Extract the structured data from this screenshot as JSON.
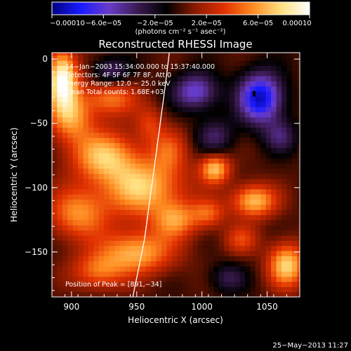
{
  "chart_data": {
    "type": "heatmap",
    "title": "Reconstructed RHESSI Image",
    "xlabel": "Heliocentric X (arcsec)",
    "ylabel": "Heliocentric Y (arcsec)",
    "xlim": [
      885,
      1075
    ],
    "ylim": [
      -185,
      5
    ],
    "x_ticks": [
      900,
      950,
      1000,
      1050
    ],
    "y_ticks": [
      0,
      -50,
      -100,
      -150
    ],
    "colorbar": {
      "range": [
        -0.0001,
        0.0001
      ],
      "ticks": [
        -0.0001,
        -6e-05,
        -2e-05,
        2e-05,
        6e-05,
        0.0001
      ],
      "tick_labels": [
        "−0.00010",
        "−6.0e−05",
        "−2.0e−05",
        "2.0e−05",
        "6.0e−05",
        "0.00010"
      ],
      "unit_label": "(photons cm⁻² s⁻¹ asec⁻²)",
      "colormap": [
        "#000080",
        "#1a1aff",
        "#6a3cc8",
        "#3a1a50",
        "#000000",
        "#8a1a00",
        "#e03000",
        "#ff8a20",
        "#ffe080",
        "#ffffff"
      ]
    },
    "annotations": [
      "14−Jan−2003 15:34:00.000 to 15:37:40.000",
      "Detectors: 4F 5F 6F 7F 8F, Att 0",
      "Energy Range: 12.0 − 25.0 keV",
      "Clean    Total counts: 1.68E+03"
    ],
    "peak_label": "Position of Peak = [891,−34]",
    "peak_position": [
      891,
      -34
    ],
    "limb_curve": [
      [
        975,
        5
      ],
      [
        972,
        -20
      ],
      [
        968,
        -50
      ],
      [
        964,
        -80
      ],
      [
        960,
        -110
      ],
      [
        956,
        -140
      ],
      [
        951,
        -165
      ],
      [
        947,
        -185
      ]
    ],
    "blobs": [
      {
        "x": 893,
        "y": -15,
        "sx": 8,
        "sy": 16,
        "a": 1.0
      },
      {
        "x": 900,
        "y": -45,
        "sx": 12,
        "sy": 14,
        "a": 0.55
      },
      {
        "x": 930,
        "y": -30,
        "sx": 14,
        "sy": 10,
        "a": 0.5
      },
      {
        "x": 925,
        "y": -75,
        "sx": 18,
        "sy": 14,
        "a": 0.65
      },
      {
        "x": 955,
        "y": -100,
        "sx": 22,
        "sy": 16,
        "a": 0.7
      },
      {
        "x": 905,
        "y": -120,
        "sx": 16,
        "sy": 14,
        "a": 0.55
      },
      {
        "x": 980,
        "y": -125,
        "sx": 12,
        "sy": 10,
        "a": 0.5
      },
      {
        "x": 950,
        "y": -150,
        "sx": 20,
        "sy": 12,
        "a": 0.65
      },
      {
        "x": 920,
        "y": -165,
        "sx": 14,
        "sy": 10,
        "a": 0.45
      },
      {
        "x": 975,
        "y": -70,
        "sx": 10,
        "sy": 12,
        "a": 0.35
      },
      {
        "x": 1010,
        "y": -85,
        "sx": 8,
        "sy": 8,
        "a": 0.7
      },
      {
        "x": 1040,
        "y": -110,
        "sx": 12,
        "sy": 9,
        "a": 0.7
      },
      {
        "x": 1005,
        "y": -120,
        "sx": 9,
        "sy": 8,
        "a": 0.4
      },
      {
        "x": 1065,
        "y": -160,
        "sx": 10,
        "sy": 12,
        "a": 0.75
      },
      {
        "x": 1030,
        "y": -140,
        "sx": 9,
        "sy": 8,
        "a": 0.35
      },
      {
        "x": 960,
        "y": -50,
        "sx": 8,
        "sy": 10,
        "a": 0.3
      },
      {
        "x": 1045,
        "y": -30,
        "sx": 12,
        "sy": 14,
        "a": -0.9
      },
      {
        "x": 995,
        "y": -25,
        "sx": 12,
        "sy": 10,
        "a": -0.6
      },
      {
        "x": 1010,
        "y": -60,
        "sx": 10,
        "sy": 10,
        "a": -0.35
      },
      {
        "x": 930,
        "y": -10,
        "sx": 10,
        "sy": 8,
        "a": -0.4
      },
      {
        "x": 1060,
        "y": -60,
        "sx": 9,
        "sy": 9,
        "a": -0.35
      },
      {
        "x": 1020,
        "y": -170,
        "sx": 10,
        "sy": 8,
        "a": -0.3
      }
    ]
  },
  "footer": {
    "timestamp": "25−May−2013 11:27"
  }
}
